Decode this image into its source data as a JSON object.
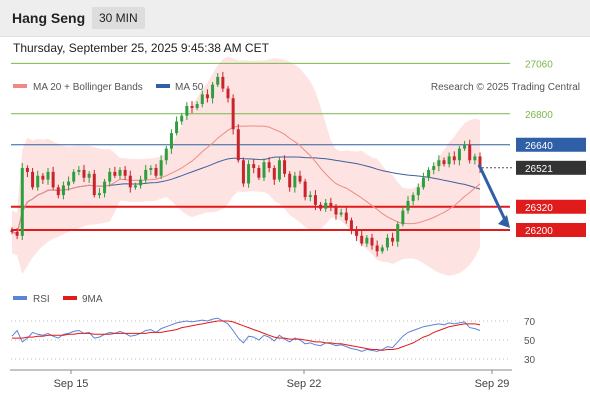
{
  "header": {
    "instrument": "Hang Seng",
    "interval": "30 MIN"
  },
  "timestamp": "Thursday, September 25, 2025 9:45:38 AM CET",
  "copyright": "Research © 2025 Trading Central",
  "colors": {
    "candle_up": "#2e9e3e",
    "candle_down": "#c9232c",
    "ma20": "#f08a84",
    "ma50": "#3f5f9e",
    "bollinger_fill": "#fde0de",
    "green_level": "#7ab94a",
    "blue_level": "#2f5fa6",
    "red_level": "#e01b1b",
    "last_price_bg": "#333333",
    "arrow": "#2f5fa6",
    "rsi": "#5b83d6",
    "rsi_ma": "#e01b1b"
  },
  "chart_data": [
    {
      "type": "candlestick",
      "legend": [
        {
          "name": "MA 20 + Bollinger Bands",
          "color": "#f08a84"
        },
        {
          "name": "MA 50",
          "color": "#2f5fa6"
        }
      ],
      "x_tick_labels": [
        "Sep 15",
        "Sep 22",
        "Sep 29"
      ],
      "y_range": [
        26000,
        27120
      ],
      "levels": [
        {
          "label": "27060",
          "value": 27060,
          "kind": "resistance",
          "color": "#7ab94a"
        },
        {
          "label": "26800",
          "value": 26800,
          "kind": "resistance",
          "color": "#7ab94a"
        },
        {
          "label": "26640",
          "value": 26640,
          "kind": "pivot",
          "color": "#2f5fa6"
        },
        {
          "label": "26521",
          "value": 26521,
          "kind": "last",
          "color": "#333333"
        },
        {
          "label": "26320",
          "value": 26320,
          "kind": "support",
          "color": "#e01b1b"
        },
        {
          "label": "26200",
          "value": 26200,
          "kind": "support",
          "color": "#e01b1b"
        }
      ],
      "forecast_arrow": {
        "from_value": 26521,
        "to_value": 26200,
        "direction": "down"
      },
      "close": [
        26190,
        26170,
        26520,
        26500,
        26420,
        26480,
        26460,
        26500,
        26420,
        26380,
        26430,
        26450,
        26500,
        26510,
        26470,
        26490,
        26380,
        26390,
        26450,
        26500,
        26480,
        26510,
        26480,
        26420,
        26430,
        26460,
        26510,
        26520,
        26480,
        26560,
        26620,
        26700,
        26760,
        26790,
        26840,
        26830,
        26850,
        26900,
        26880,
        26950,
        26990,
        26930,
        26880,
        26720,
        26560,
        26440,
        26540,
        26520,
        26470,
        26550,
        26520,
        26460,
        26560,
        26490,
        26420,
        26480,
        26450,
        26370,
        26380,
        26330,
        26310,
        26340,
        26320,
        26280,
        26290,
        26250,
        26200,
        26170,
        26130,
        26160,
        26120,
        26090,
        26110,
        26160,
        26140,
        26230,
        26300,
        26350,
        26380,
        26420,
        26470,
        26510,
        26530,
        26560,
        26540,
        26580,
        26560,
        26620,
        26640,
        26560,
        26580,
        26521
      ],
      "rsi_panel": {
        "legend": [
          {
            "name": "RSI",
            "color": "#5b83d6"
          },
          {
            "name": "9MA",
            "color": "#e01b1b"
          }
        ],
        "levels": [
          70,
          50,
          30
        ],
        "y_range": [
          20,
          80
        ],
        "rsi": [
          54,
          60,
          48,
          52,
          58,
          56,
          55,
          57,
          54,
          52,
          56,
          57,
          59,
          60,
          57,
          58,
          52,
          53,
          56,
          58,
          57,
          59,
          57,
          54,
          55,
          57,
          60,
          61,
          58,
          62,
          64,
          66,
          68,
          69,
          70,
          69,
          70,
          71,
          70,
          72,
          73,
          70,
          67,
          60,
          52,
          47,
          54,
          53,
          50,
          55,
          53,
          49,
          55,
          51,
          48,
          52,
          50,
          46,
          47,
          45,
          44,
          47,
          46,
          44,
          45,
          43,
          41,
          40,
          38,
          40,
          39,
          38,
          40,
          43,
          42,
          48,
          54,
          58,
          60,
          62,
          64,
          65,
          66,
          67,
          66,
          68,
          67,
          68,
          69,
          63,
          62,
          60
        ],
        "ma": [
          52,
          52,
          52,
          53,
          53,
          54,
          54,
          55,
          55,
          55,
          55,
          56,
          56,
          57,
          57,
          57,
          56,
          56,
          56,
          56,
          57,
          57,
          57,
          57,
          57,
          57,
          57,
          58,
          58,
          58,
          59,
          60,
          61,
          63,
          64,
          65,
          66,
          67,
          68,
          69,
          70,
          70,
          70,
          69,
          67,
          65,
          63,
          61,
          59,
          57,
          55,
          53,
          52,
          52,
          51,
          51,
          51,
          50,
          49,
          48,
          48,
          47,
          47,
          46,
          46,
          45,
          44,
          43,
          42,
          41,
          40,
          40,
          39,
          40,
          40,
          41,
          43,
          45,
          47,
          50,
          53,
          55,
          58,
          60,
          62,
          64,
          65,
          66,
          67,
          67,
          67,
          66
        ]
      }
    }
  ]
}
